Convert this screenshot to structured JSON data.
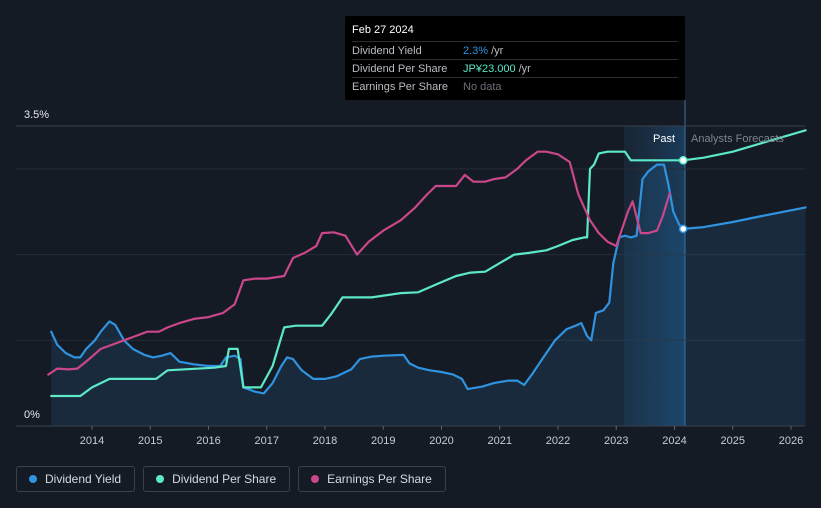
{
  "tooltip": {
    "date": "Feb 27 2024",
    "rows": [
      {
        "name": "Dividend Yield",
        "value": "2.3%",
        "unit": "/yr",
        "color": "#2f93e0"
      },
      {
        "name": "Dividend Per Share",
        "value": "JP¥23.000",
        "unit": "/yr",
        "color": "#5de8c7"
      },
      {
        "name": "Earnings Per Share",
        "value": "No data",
        "unit": "",
        "color": "#6b7078"
      }
    ]
  },
  "regions": {
    "past_label": "Past",
    "forecast_label": "Analysts Forecasts"
  },
  "legend": [
    {
      "label": "Dividend Yield",
      "color": "#2f93e0"
    },
    {
      "label": "Dividend Per Share",
      "color": "#5de8c7"
    },
    {
      "label": "Earnings Per Share",
      "color": "#c9478a"
    }
  ],
  "chart_data": {
    "type": "line",
    "x_ticks": [
      "2014",
      "2015",
      "2016",
      "2017",
      "2018",
      "2019",
      "2020",
      "2021",
      "2022",
      "2023",
      "2024",
      "2025",
      "2026"
    ],
    "y_ticks": [
      "0%",
      "3.5%"
    ],
    "ylim_percent": [
      0,
      3.5
    ],
    "xlim": [
      2013.25,
      2026.25
    ],
    "past_end": 2024.15,
    "forecast_region_start": 2023.15,
    "colors": {
      "yield": "#2f93e0",
      "dps": "#5de8c7",
      "eps": "#c9478a"
    },
    "series": [
      {
        "name": "Dividend Yield",
        "key": "yield",
        "unit": "%",
        "points": [
          [
            2013.3,
            1.1
          ],
          [
            2013.4,
            0.95
          ],
          [
            2013.55,
            0.85
          ],
          [
            2013.7,
            0.8
          ],
          [
            2013.8,
            0.8
          ],
          [
            2013.9,
            0.9
          ],
          [
            2014.05,
            1.0
          ],
          [
            2014.15,
            1.1
          ],
          [
            2014.3,
            1.22
          ],
          [
            2014.4,
            1.18
          ],
          [
            2014.55,
            1.0
          ],
          [
            2014.7,
            0.9
          ],
          [
            2014.9,
            0.83
          ],
          [
            2015.05,
            0.8
          ],
          [
            2015.2,
            0.82
          ],
          [
            2015.35,
            0.85
          ],
          [
            2015.5,
            0.75
          ],
          [
            2015.75,
            0.72
          ],
          [
            2016.0,
            0.7
          ],
          [
            2016.2,
            0.7
          ],
          [
            2016.3,
            0.8
          ],
          [
            2016.45,
            0.82
          ],
          [
            2016.55,
            0.78
          ],
          [
            2016.6,
            0.45
          ],
          [
            2016.8,
            0.4
          ],
          [
            2016.95,
            0.38
          ],
          [
            2017.1,
            0.5
          ],
          [
            2017.25,
            0.7
          ],
          [
            2017.35,
            0.8
          ],
          [
            2017.45,
            0.78
          ],
          [
            2017.6,
            0.65
          ],
          [
            2017.8,
            0.55
          ],
          [
            2018.0,
            0.55
          ],
          [
            2018.2,
            0.58
          ],
          [
            2018.45,
            0.66
          ],
          [
            2018.6,
            0.78
          ],
          [
            2018.8,
            0.81
          ],
          [
            2019.0,
            0.82
          ],
          [
            2019.35,
            0.83
          ],
          [
            2019.45,
            0.73
          ],
          [
            2019.6,
            0.68
          ],
          [
            2019.8,
            0.65
          ],
          [
            2020.0,
            0.63
          ],
          [
            2020.2,
            0.6
          ],
          [
            2020.35,
            0.55
          ],
          [
            2020.45,
            0.43
          ],
          [
            2020.7,
            0.46
          ],
          [
            2020.9,
            0.5
          ],
          [
            2021.15,
            0.53
          ],
          [
            2021.3,
            0.53
          ],
          [
            2021.42,
            0.48
          ],
          [
            2021.55,
            0.6
          ],
          [
            2021.75,
            0.8
          ],
          [
            2021.95,
            1.0
          ],
          [
            2022.15,
            1.13
          ],
          [
            2022.3,
            1.17
          ],
          [
            2022.4,
            1.2
          ],
          [
            2022.5,
            1.05
          ],
          [
            2022.57,
            1.0
          ],
          [
            2022.65,
            1.32
          ],
          [
            2022.78,
            1.35
          ],
          [
            2022.88,
            1.44
          ],
          [
            2022.95,
            1.9
          ],
          [
            2023.05,
            2.2
          ],
          [
            2023.15,
            2.22
          ],
          [
            2023.25,
            2.2
          ],
          [
            2023.35,
            2.22
          ],
          [
            2023.45,
            2.88
          ],
          [
            2023.55,
            2.97
          ],
          [
            2023.7,
            3.05
          ],
          [
            2023.82,
            3.05
          ],
          [
            2023.9,
            2.8
          ],
          [
            2023.98,
            2.5
          ],
          [
            2024.08,
            2.35
          ],
          [
            2024.15,
            2.3
          ],
          [
            2024.5,
            2.32
          ],
          [
            2025.0,
            2.38
          ],
          [
            2025.5,
            2.45
          ],
          [
            2026.25,
            2.55
          ]
        ]
      },
      {
        "name": "Dividend Per Share",
        "key": "dps",
        "unit": "%",
        "points": [
          [
            2013.3,
            0.35
          ],
          [
            2013.8,
            0.35
          ],
          [
            2014.0,
            0.45
          ],
          [
            2014.3,
            0.55
          ],
          [
            2015.1,
            0.55
          ],
          [
            2015.3,
            0.65
          ],
          [
            2016.1,
            0.68
          ],
          [
            2016.3,
            0.7
          ],
          [
            2016.35,
            0.9
          ],
          [
            2016.5,
            0.9
          ],
          [
            2016.6,
            0.45
          ],
          [
            2016.9,
            0.45
          ],
          [
            2017.1,
            0.7
          ],
          [
            2017.3,
            1.15
          ],
          [
            2017.5,
            1.17
          ],
          [
            2017.95,
            1.17
          ],
          [
            2018.1,
            1.3
          ],
          [
            2018.3,
            1.5
          ],
          [
            2018.8,
            1.5
          ],
          [
            2019.3,
            1.55
          ],
          [
            2019.6,
            1.56
          ],
          [
            2019.9,
            1.65
          ],
          [
            2020.25,
            1.75
          ],
          [
            2020.5,
            1.79
          ],
          [
            2020.75,
            1.8
          ],
          [
            2021.0,
            1.9
          ],
          [
            2021.25,
            2.0
          ],
          [
            2021.5,
            2.02
          ],
          [
            2021.8,
            2.05
          ],
          [
            2022.0,
            2.1
          ],
          [
            2022.25,
            2.17
          ],
          [
            2022.45,
            2.2
          ],
          [
            2022.5,
            2.2
          ],
          [
            2022.55,
            3.0
          ],
          [
            2022.62,
            3.05
          ],
          [
            2022.7,
            3.18
          ],
          [
            2022.85,
            3.2
          ],
          [
            2023.15,
            3.2
          ],
          [
            2023.25,
            3.1
          ],
          [
            2024.15,
            3.1
          ],
          [
            2024.5,
            3.13
          ],
          [
            2025.0,
            3.2
          ],
          [
            2025.5,
            3.3
          ],
          [
            2026.25,
            3.45
          ]
        ]
      },
      {
        "name": "Earnings Per Share",
        "key": "eps",
        "unit": "%",
        "points": [
          [
            2013.25,
            0.6
          ],
          [
            2013.4,
            0.67
          ],
          [
            2013.6,
            0.66
          ],
          [
            2013.75,
            0.67
          ],
          [
            2013.95,
            0.78
          ],
          [
            2014.15,
            0.9
          ],
          [
            2014.35,
            0.95
          ],
          [
            2014.55,
            1.0
          ],
          [
            2014.75,
            1.05
          ],
          [
            2014.95,
            1.1
          ],
          [
            2015.15,
            1.1
          ],
          [
            2015.3,
            1.15
          ],
          [
            2015.5,
            1.2
          ],
          [
            2015.75,
            1.25
          ],
          [
            2016.0,
            1.27
          ],
          [
            2016.25,
            1.32
          ],
          [
            2016.45,
            1.42
          ],
          [
            2016.6,
            1.7
          ],
          [
            2016.8,
            1.72
          ],
          [
            2017.0,
            1.72
          ],
          [
            2017.3,
            1.75
          ],
          [
            2017.45,
            1.96
          ],
          [
            2017.65,
            2.02
          ],
          [
            2017.85,
            2.1
          ],
          [
            2017.95,
            2.25
          ],
          [
            2018.15,
            2.26
          ],
          [
            2018.35,
            2.22
          ],
          [
            2018.55,
            2.0
          ],
          [
            2018.75,
            2.15
          ],
          [
            2019.0,
            2.28
          ],
          [
            2019.3,
            2.4
          ],
          [
            2019.55,
            2.55
          ],
          [
            2019.75,
            2.7
          ],
          [
            2019.9,
            2.8
          ],
          [
            2020.1,
            2.8
          ],
          [
            2020.25,
            2.8
          ],
          [
            2020.4,
            2.93
          ],
          [
            2020.55,
            2.85
          ],
          [
            2020.75,
            2.85
          ],
          [
            2020.9,
            2.88
          ],
          [
            2021.1,
            2.9
          ],
          [
            2021.3,
            3.0
          ],
          [
            2021.45,
            3.1
          ],
          [
            2021.65,
            3.2
          ],
          [
            2021.8,
            3.2
          ],
          [
            2022.0,
            3.17
          ],
          [
            2022.2,
            3.08
          ],
          [
            2022.35,
            2.7
          ],
          [
            2022.55,
            2.4
          ],
          [
            2022.7,
            2.25
          ],
          [
            2022.85,
            2.15
          ],
          [
            2023.0,
            2.1
          ],
          [
            2023.2,
            2.5
          ],
          [
            2023.28,
            2.62
          ],
          [
            2023.42,
            2.25
          ],
          [
            2023.55,
            2.25
          ],
          [
            2023.7,
            2.28
          ],
          [
            2023.8,
            2.45
          ],
          [
            2023.92,
            2.72
          ]
        ]
      }
    ]
  }
}
